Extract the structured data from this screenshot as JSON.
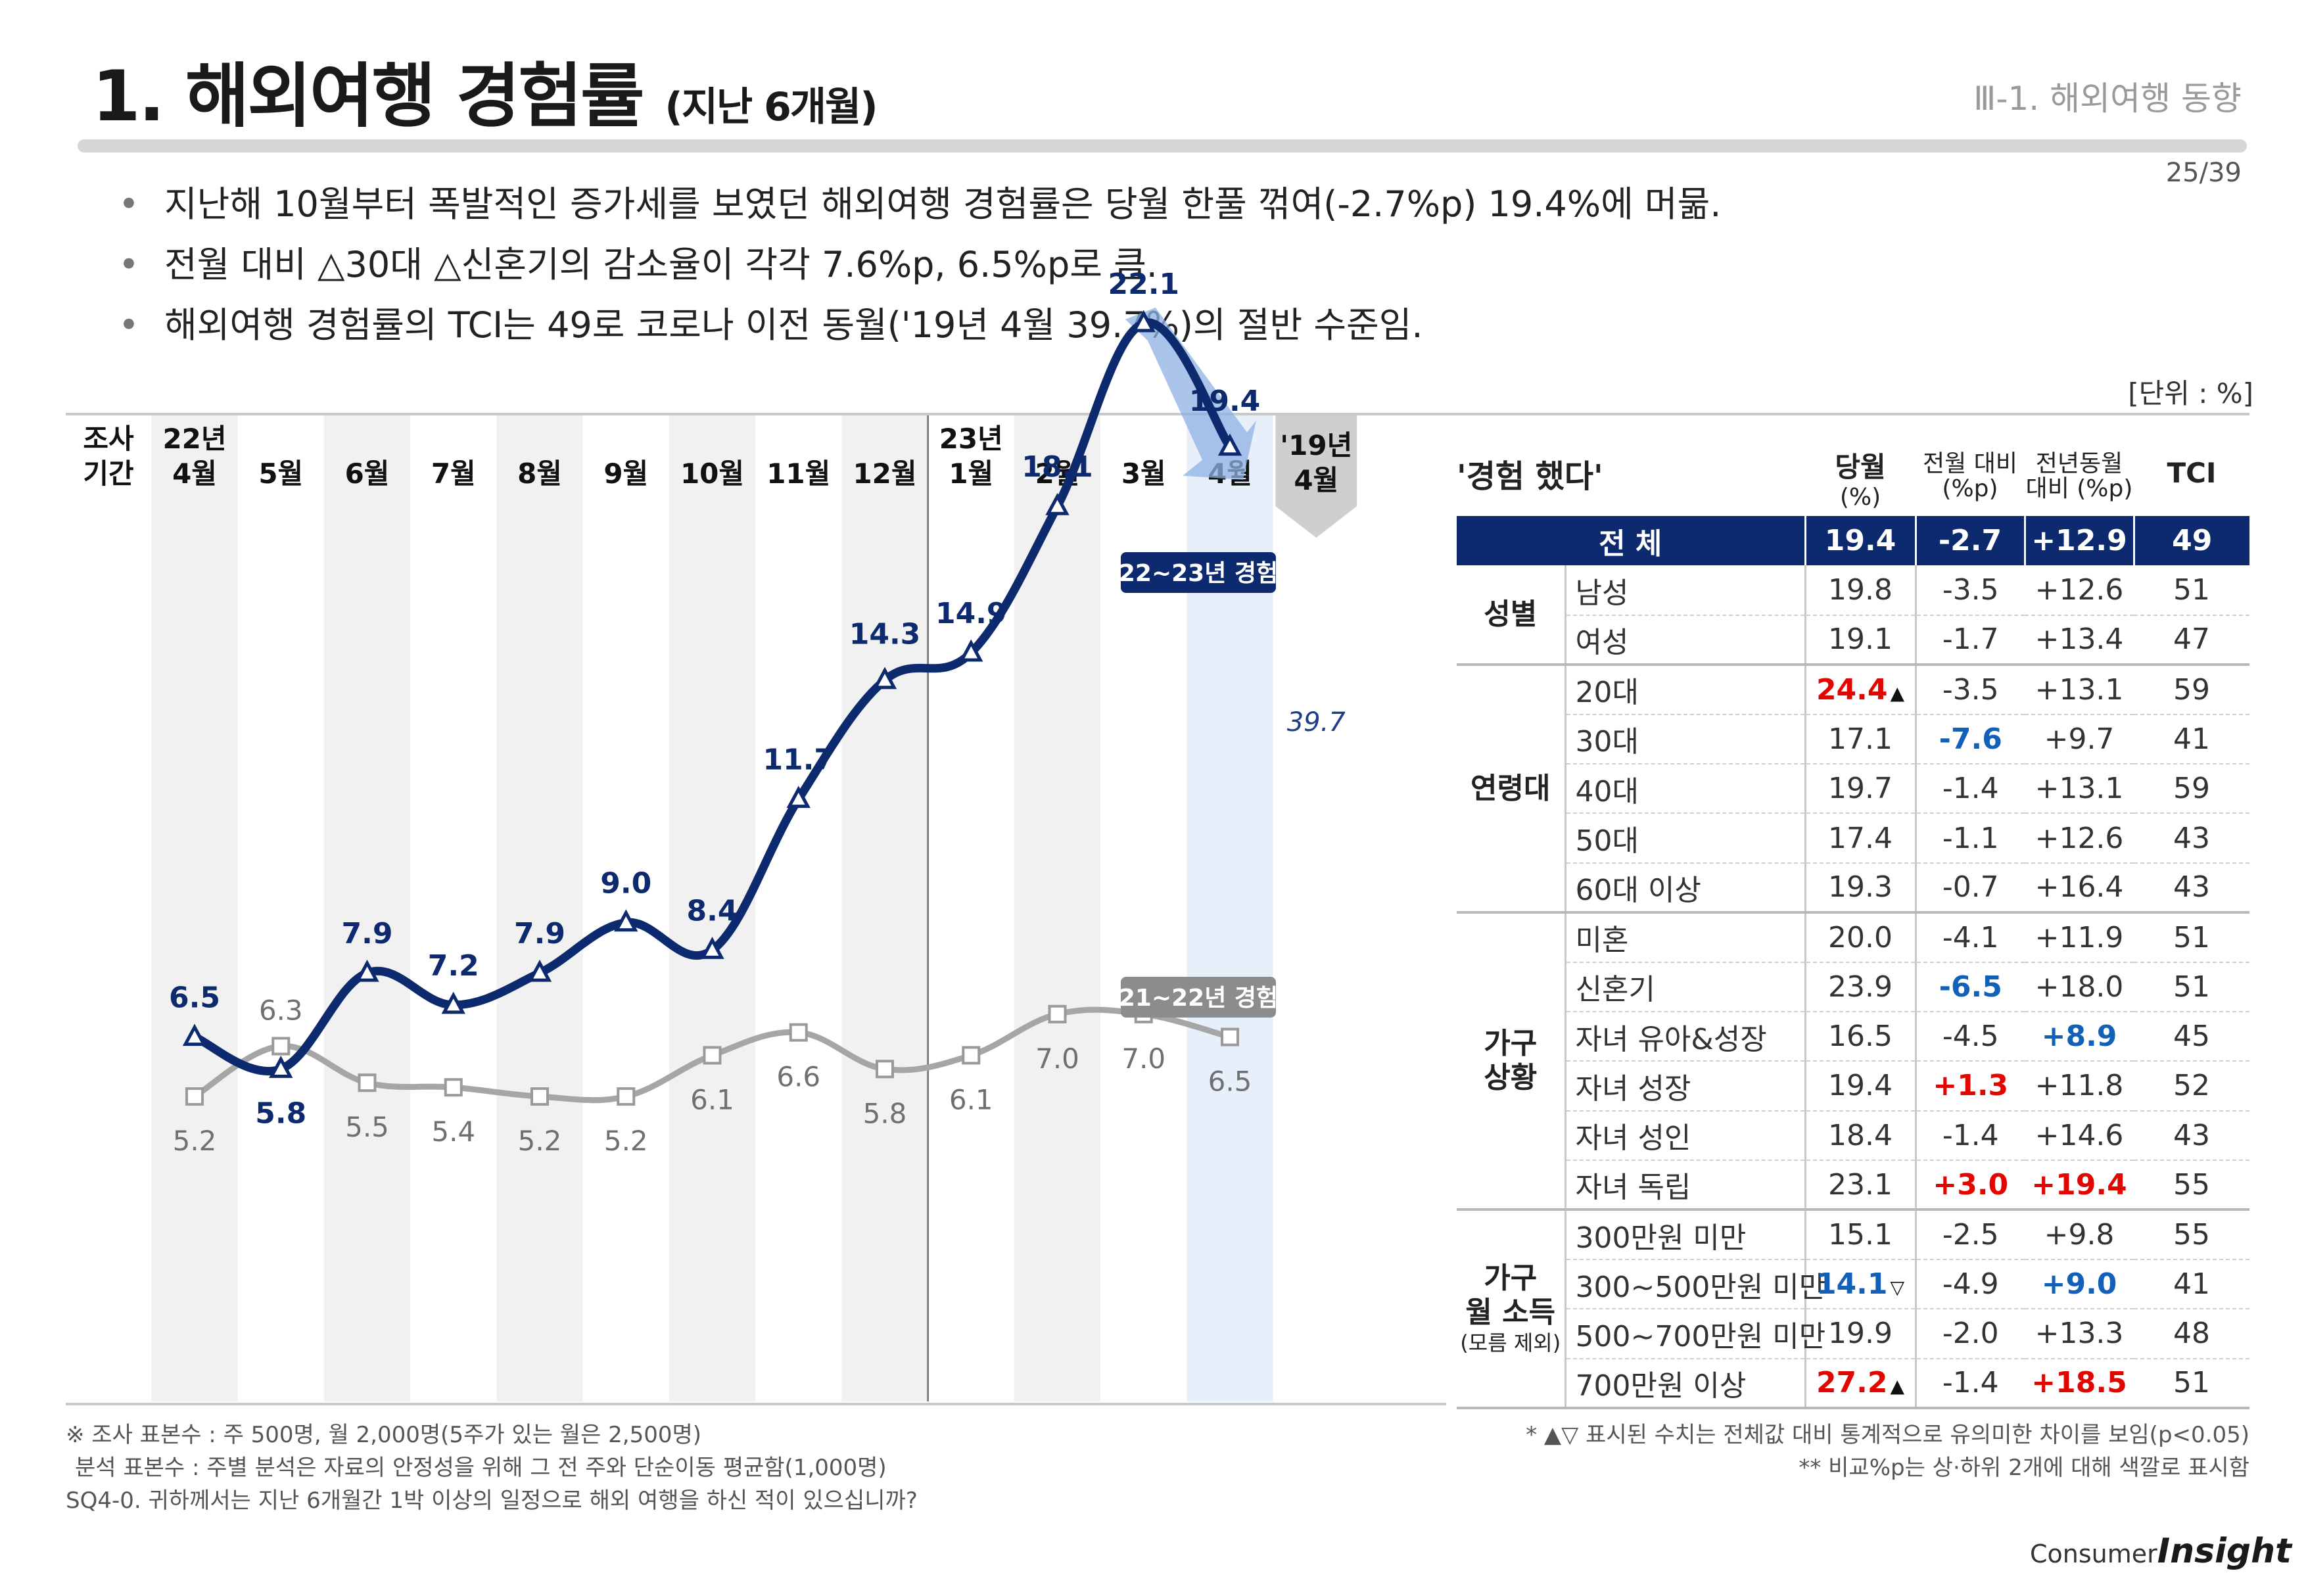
{
  "header": {
    "title_main": "1. 해외여행 경험률",
    "title_sub": "(지난 6개월)",
    "section": "Ⅲ-1. 해외여행 동향",
    "page": "25/39"
  },
  "bullets": [
    "지난해 10월부터 폭발적인 증가세를 보였던 해외여행 경험률은 당월 한풀 꺾여(-2.7%p) 19.4%에 머묾.",
    "전월 대비 △30대 △신혼기의 감소율이 각각 7.6%p, 6.5%p로 큼.",
    "해외여행 경험률의 TCI는 49로 코로나 이전 동월('19년 4월 39.7%)의 절반 수준임."
  ],
  "unit": "[단위 : %]",
  "chart_data": {
    "type": "line",
    "period_label": [
      "조사",
      "기간"
    ],
    "categories": [
      [
        "22년",
        "4월"
      ],
      [
        "",
        "5월"
      ],
      [
        "",
        "6월"
      ],
      [
        "",
        "7월"
      ],
      [
        "",
        "8월"
      ],
      [
        "",
        "9월"
      ],
      [
        "",
        "10월"
      ],
      [
        "",
        "11월"
      ],
      [
        "",
        "12월"
      ],
      [
        "23년",
        "1월"
      ],
      [
        "",
        "2월"
      ],
      [
        "",
        "3월"
      ],
      [
        "",
        "4월"
      ]
    ],
    "reference_category": [
      "'19년",
      "4월"
    ],
    "series": [
      {
        "name": "22~23년 경험",
        "color": "#0d2a6e",
        "values": [
          6.5,
          5.8,
          7.9,
          7.2,
          7.9,
          9.0,
          8.4,
          11.7,
          14.3,
          14.9,
          18.1,
          22.1,
          19.4
        ],
        "labels": [
          "6.5",
          "5.8",
          "7.9",
          "7.2",
          "7.9",
          "9.0",
          "8.4",
          "11.7",
          "14.3",
          "14.9",
          "18.1",
          "22.1",
          "19.4"
        ]
      },
      {
        "name": "21~22년 경험",
        "color": "#a6a6a6",
        "values": [
          5.2,
          6.3,
          5.5,
          5.4,
          5.2,
          5.2,
          6.1,
          6.6,
          5.8,
          6.1,
          7.0,
          7.0,
          6.5
        ],
        "labels": [
          "5.2",
          "6.3",
          "5.5",
          "5.4",
          "5.2",
          "5.2",
          "6.1",
          "6.6",
          "5.8",
          "6.1",
          "7.0",
          "7.0",
          "6.5"
        ]
      }
    ],
    "reference_value": 39.7,
    "reference_label": "39.7",
    "ylim": [
      0,
      25
    ],
    "xlabel": "",
    "ylabel": "",
    "title": ""
  },
  "table": {
    "caption": "'경험 했다'",
    "headers": {
      "cur": [
        "당월",
        "(%)"
      ],
      "mom": [
        "전월 대비",
        "(%p)"
      ],
      "yoy": [
        "전년동월",
        "대비 (%p)"
      ],
      "tci": "TCI"
    },
    "total": {
      "label": "전 체",
      "cur": "19.4",
      "mom": "-2.7",
      "yoy": "+12.9",
      "tci": "49"
    },
    "groups": [
      {
        "name": [
          "성별"
        ],
        "rows": [
          {
            "item": "남성",
            "cur": "19.8",
            "mom": "-3.5",
            "yoy": "+12.6",
            "tci": "51"
          },
          {
            "item": "여성",
            "cur": "19.1",
            "mom": "-1.7",
            "yoy": "+13.4",
            "tci": "47"
          }
        ]
      },
      {
        "name": [
          "연령대"
        ],
        "rows": [
          {
            "item": "20대",
            "cur": "24.4",
            "cur_mark": "▲",
            "cur_style": "red",
            "mom": "-3.5",
            "yoy": "+13.1",
            "tci": "59"
          },
          {
            "item": "30대",
            "cur": "17.1",
            "mom": "-7.6",
            "mom_style": "blue",
            "yoy": "+9.7",
            "tci": "41"
          },
          {
            "item": "40대",
            "cur": "19.7",
            "mom": "-1.4",
            "yoy": "+13.1",
            "tci": "59"
          },
          {
            "item": "50대",
            "cur": "17.4",
            "mom": "-1.1",
            "yoy": "+12.6",
            "tci": "43"
          },
          {
            "item": "60대 이상",
            "cur": "19.3",
            "mom": "-0.7",
            "yoy": "+16.4",
            "tci": "43"
          }
        ]
      },
      {
        "name": [
          "가구",
          "상황"
        ],
        "rows": [
          {
            "item": "미혼",
            "cur": "20.0",
            "mom": "-4.1",
            "yoy": "+11.9",
            "tci": "51"
          },
          {
            "item": "신혼기",
            "cur": "23.9",
            "mom": "-6.5",
            "mom_style": "blue",
            "yoy": "+18.0",
            "tci": "51"
          },
          {
            "item": "자녀 유아&성장",
            "cur": "16.5",
            "mom": "-4.5",
            "yoy": "+8.9",
            "yoy_style": "blue",
            "tci": "45"
          },
          {
            "item": "자녀 성장",
            "cur": "19.4",
            "mom": "+1.3",
            "mom_style": "red",
            "yoy": "+11.8",
            "tci": "52"
          },
          {
            "item": "자녀 성인",
            "cur": "18.4",
            "mom": "-1.4",
            "yoy": "+14.6",
            "tci": "43"
          },
          {
            "item": "자녀 독립",
            "cur": "23.1",
            "mom": "+3.0",
            "mom_style": "red",
            "yoy": "+19.4",
            "yoy_style": "red",
            "tci": "55"
          }
        ]
      },
      {
        "name": [
          "가구",
          "월 소득"
        ],
        "name_note": "(모름 제외)",
        "rows": [
          {
            "item": "300만원 미만",
            "cur": "15.1",
            "mom": "-2.5",
            "yoy": "+9.8",
            "tci": "55"
          },
          {
            "item": "300~500만원 미만",
            "cur": "14.1",
            "cur_mark": "▽",
            "cur_style": "blue",
            "mom": "-4.9",
            "yoy": "+9.0",
            "yoy_style": "blue",
            "tci": "41"
          },
          {
            "item": "500~700만원 미만",
            "cur": "19.9",
            "mom": "-2.0",
            "yoy": "+13.3",
            "tci": "48"
          },
          {
            "item": "700만원 이상",
            "cur": "27.2",
            "cur_mark": "▲",
            "cur_style": "red",
            "mom": "-1.4",
            "yoy": "+18.5",
            "yoy_style": "red",
            "tci": "51"
          }
        ]
      }
    ]
  },
  "notes_left": [
    "※ 조사 표본수 : 주 500명, 월 2,000명(5주가 있는 월은 2,500명)",
    "분석 표본수 : 주별 분석은 자료의 안정성을 위해 그 전 주와 단순이동 평균함(1,000명)",
    "SQ4-0. 귀하께서는 지난 6개월간 1박 이상의 일정으로 해외 여행을 하신 적이 있으십니까?"
  ],
  "notes_right": [
    "* ▲▽ 표시된 수치는 전체값 대비 통계적으로 유의미한 차이를 보임(p<0.05)",
    "** 비교%p는 상·하위 2개에 대해 색깔로 표시함"
  ],
  "logo": {
    "consumer": "Consumer",
    "insight": "Insight"
  }
}
